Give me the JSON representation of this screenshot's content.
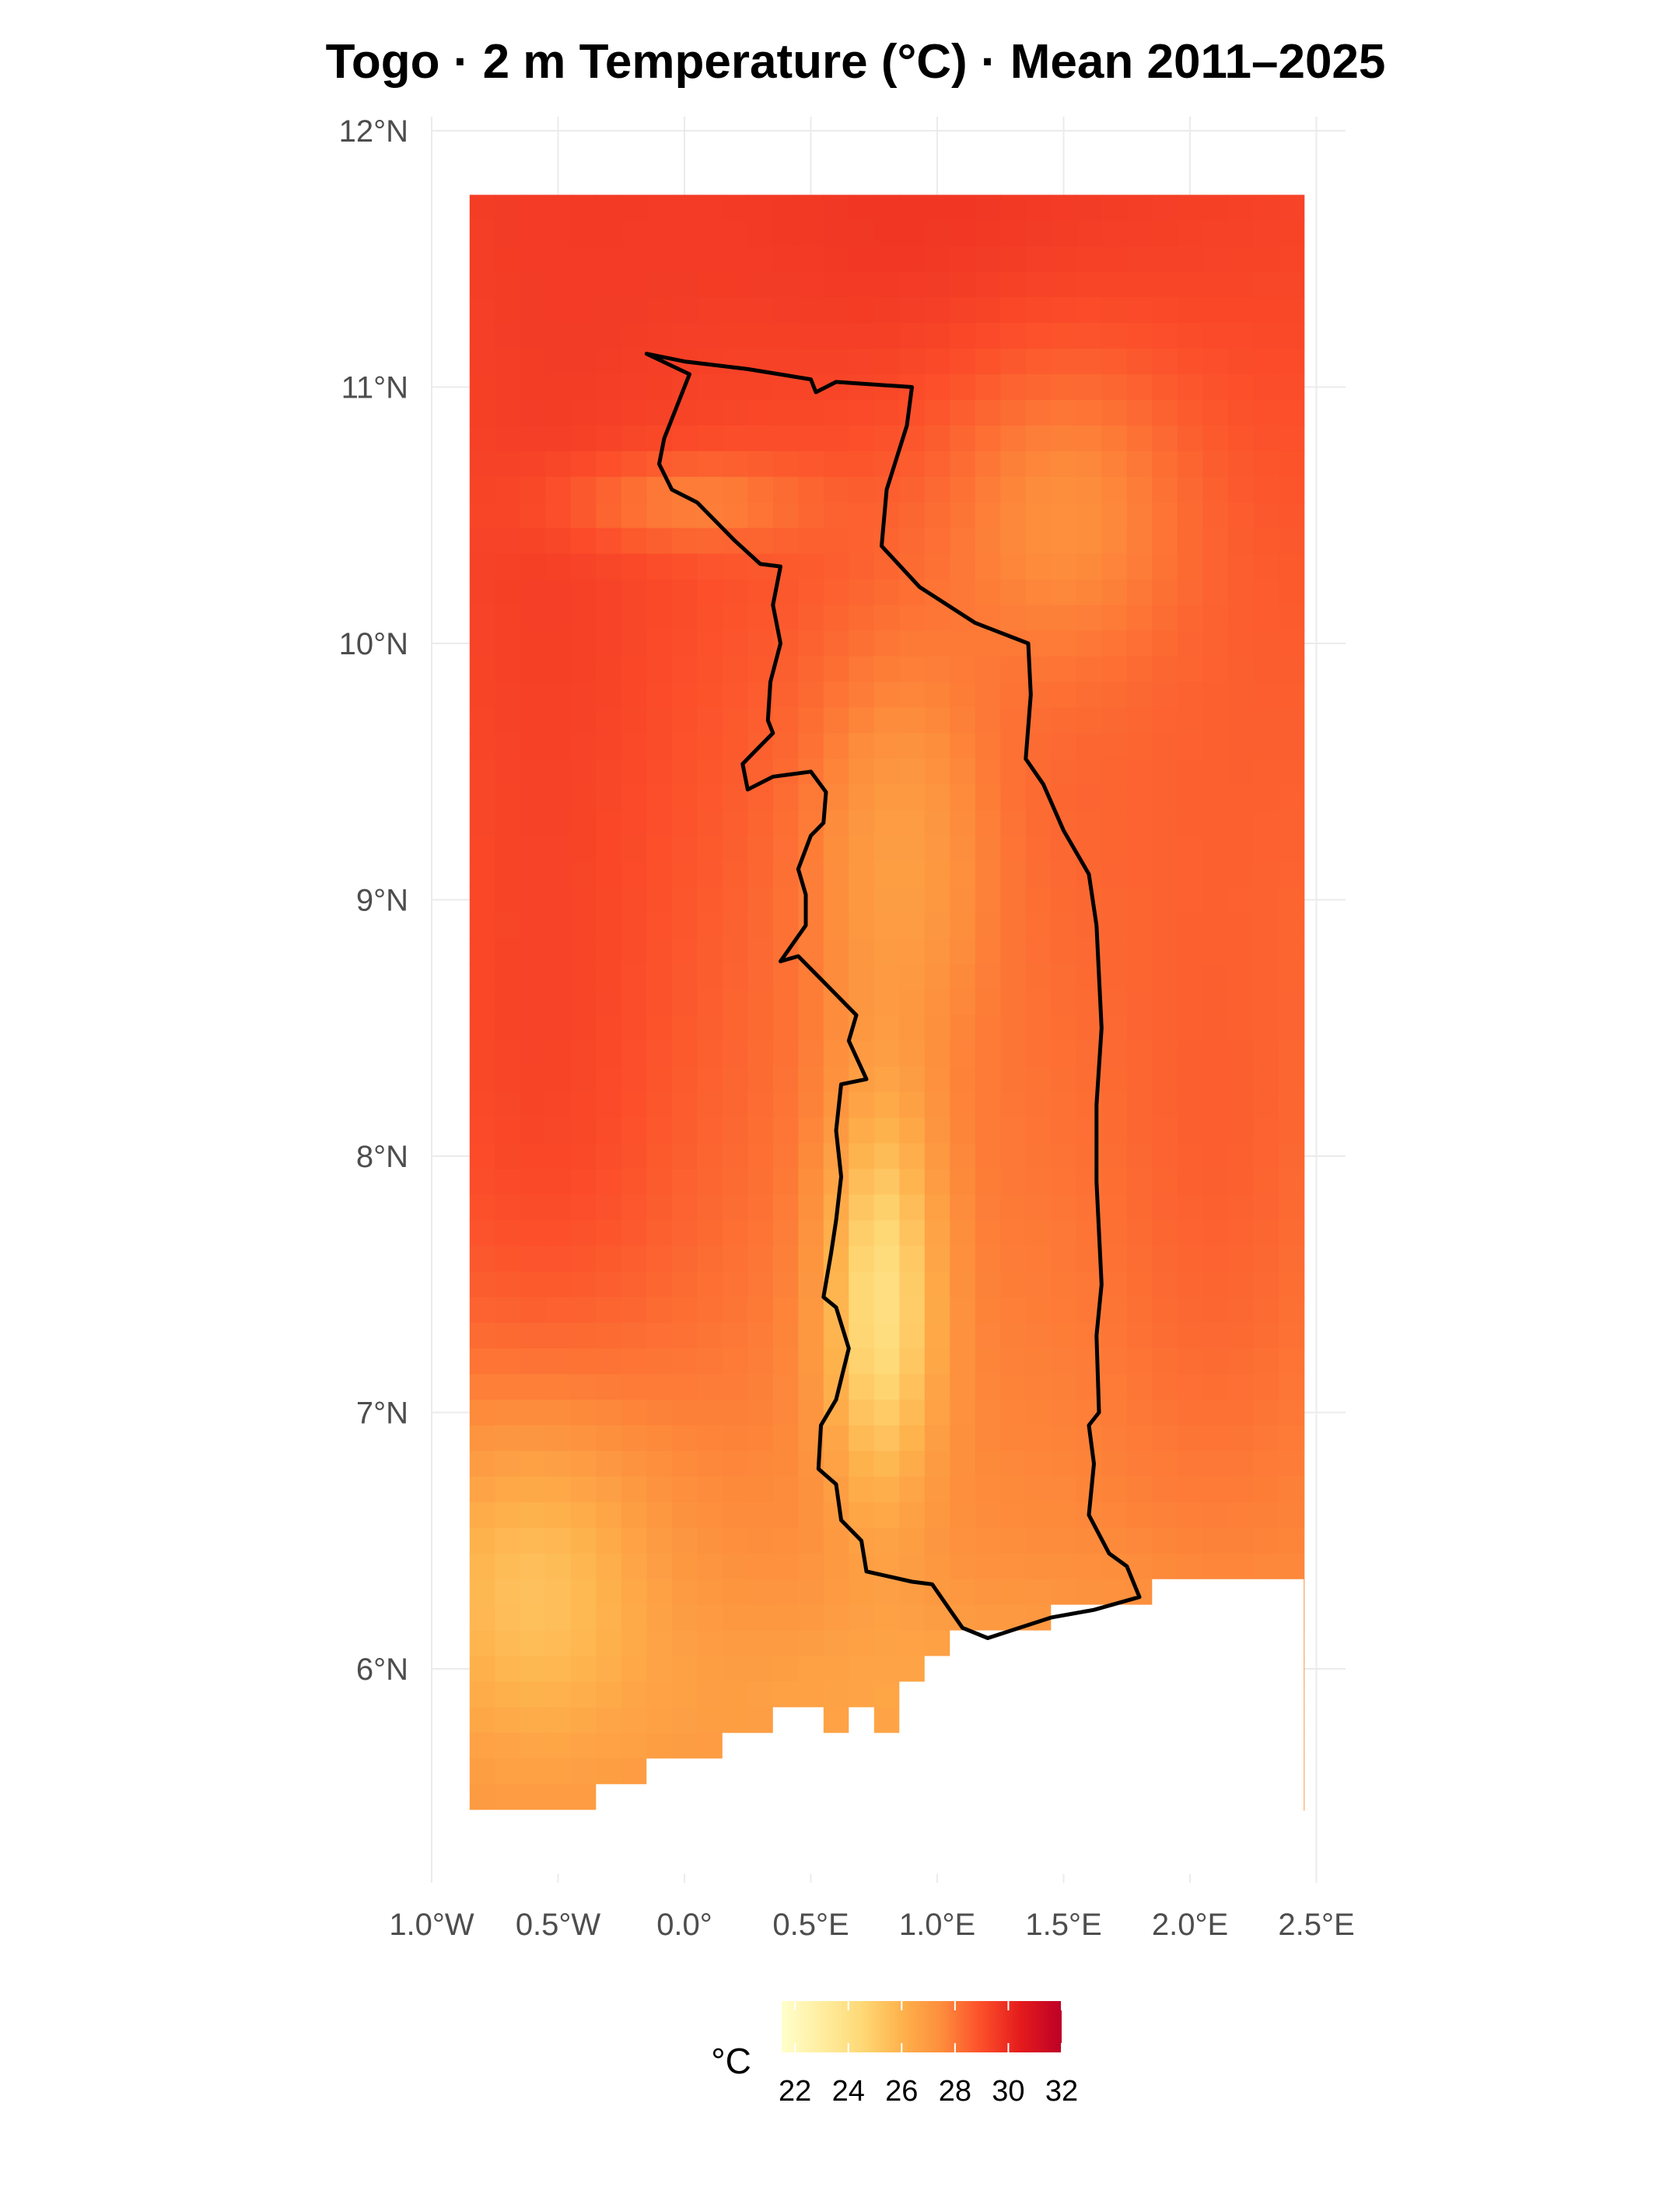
{
  "title": "Togo · 2 m Temperature (°C) · Mean 2011–2025",
  "map": {
    "type": "raster-map",
    "region": "Togo",
    "variable": "2 m Temperature",
    "unit": "°C",
    "period": "Mean 2011–2025",
    "x_ticks": [
      "1.0°W",
      "0.5°W",
      "0.0°",
      "0.5°E",
      "1.0°E",
      "1.5°E",
      "2.0°E",
      "2.5°E"
    ],
    "y_ticks": [
      "12°N",
      "11°N",
      "10°N",
      "9°N",
      "8°N",
      "7°N",
      "6°N"
    ],
    "x_tick_values": [
      -1.0,
      -0.5,
      0.0,
      0.5,
      1.0,
      1.5,
      2.0,
      2.5
    ],
    "y_tick_values": [
      12,
      11,
      10,
      9,
      8,
      7,
      6
    ],
    "lon_range": [
      -1.0,
      2.5
    ],
    "lat_range": [
      5.3,
      12.1
    ],
    "raster_extent": {
      "lon": [
        -0.85,
        2.45
      ],
      "lat": [
        5.45,
        11.75
      ]
    },
    "grid": true,
    "colorscale": [
      "#ffffcc",
      "#ffeda0",
      "#fed976",
      "#feb24c",
      "#fd8d3c",
      "#fc4e2a",
      "#e31a1c",
      "#bd0026"
    ],
    "color_limits": [
      21.5,
      32.0
    ]
  },
  "legend": {
    "title": "°C",
    "ticks": [
      "22",
      "24",
      "26",
      "28",
      "30",
      "32"
    ],
    "tick_values": [
      22,
      24,
      26,
      28,
      30,
      32
    ],
    "placement": "bottom"
  },
  "border": {
    "name": "Togo border",
    "color": "#000000"
  }
}
